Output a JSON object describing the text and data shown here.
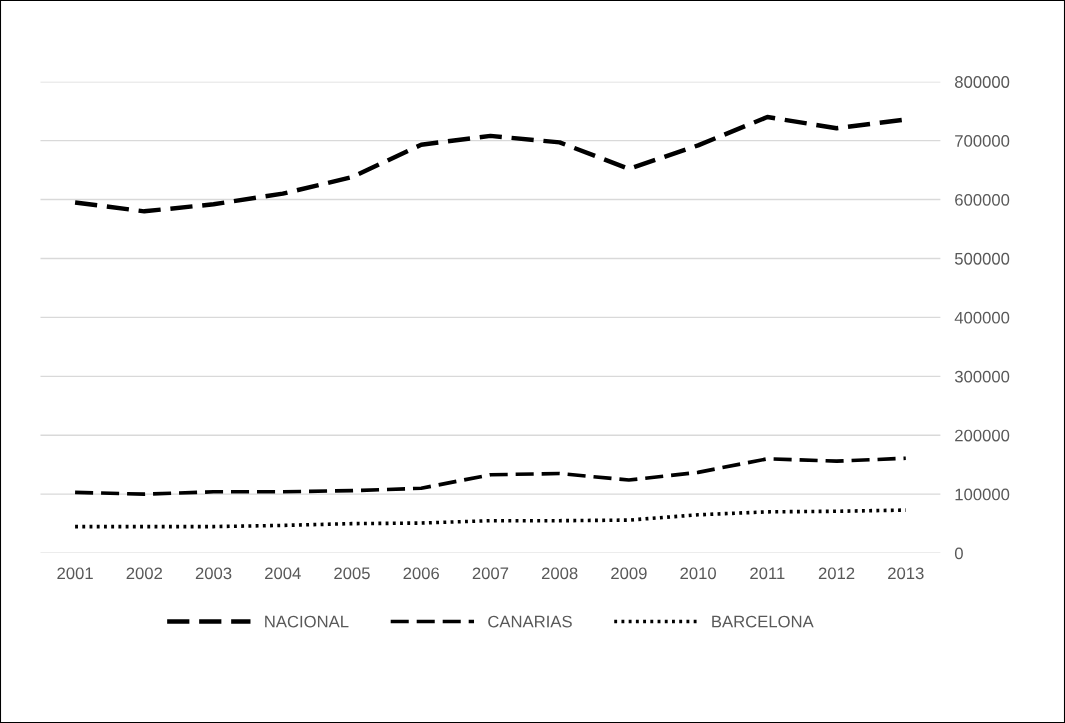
{
  "chart_data": {
    "type": "line",
    "categories": [
      "2001",
      "2002",
      "2003",
      "2004",
      "2005",
      "2006",
      "2007",
      "2008",
      "2009",
      "2010",
      "2011",
      "2012",
      "2013"
    ],
    "series": [
      {
        "name": "NACIONAL",
        "color": "#000000",
        "line_style": "dashed",
        "values": [
          595000,
          580000,
          592000,
          610000,
          638000,
          693000,
          708000,
          697000,
          652000,
          692000,
          740000,
          721000,
          736000
        ]
      },
      {
        "name": "CANARIAS",
        "color": "#000000",
        "line_style": "dashed",
        "values": [
          103000,
          100000,
          104000,
          104000,
          106000,
          110000,
          133000,
          135000,
          124000,
          137000,
          160000,
          156000,
          161000
        ]
      },
      {
        "name": "BARCELONA",
        "color": "#000000",
        "line_style": "dotted",
        "values": [
          45000,
          45000,
          45000,
          47000,
          50000,
          51000,
          55000,
          55000,
          56000,
          65000,
          70000,
          71000,
          73000
        ]
      }
    ],
    "ylim": [
      0,
      800000
    ],
    "yticks": [
      0,
      100000,
      200000,
      300000,
      400000,
      500000,
      600000,
      700000,
      800000
    ],
    "grid": "y",
    "legend": "bottom",
    "marker": "none"
  }
}
